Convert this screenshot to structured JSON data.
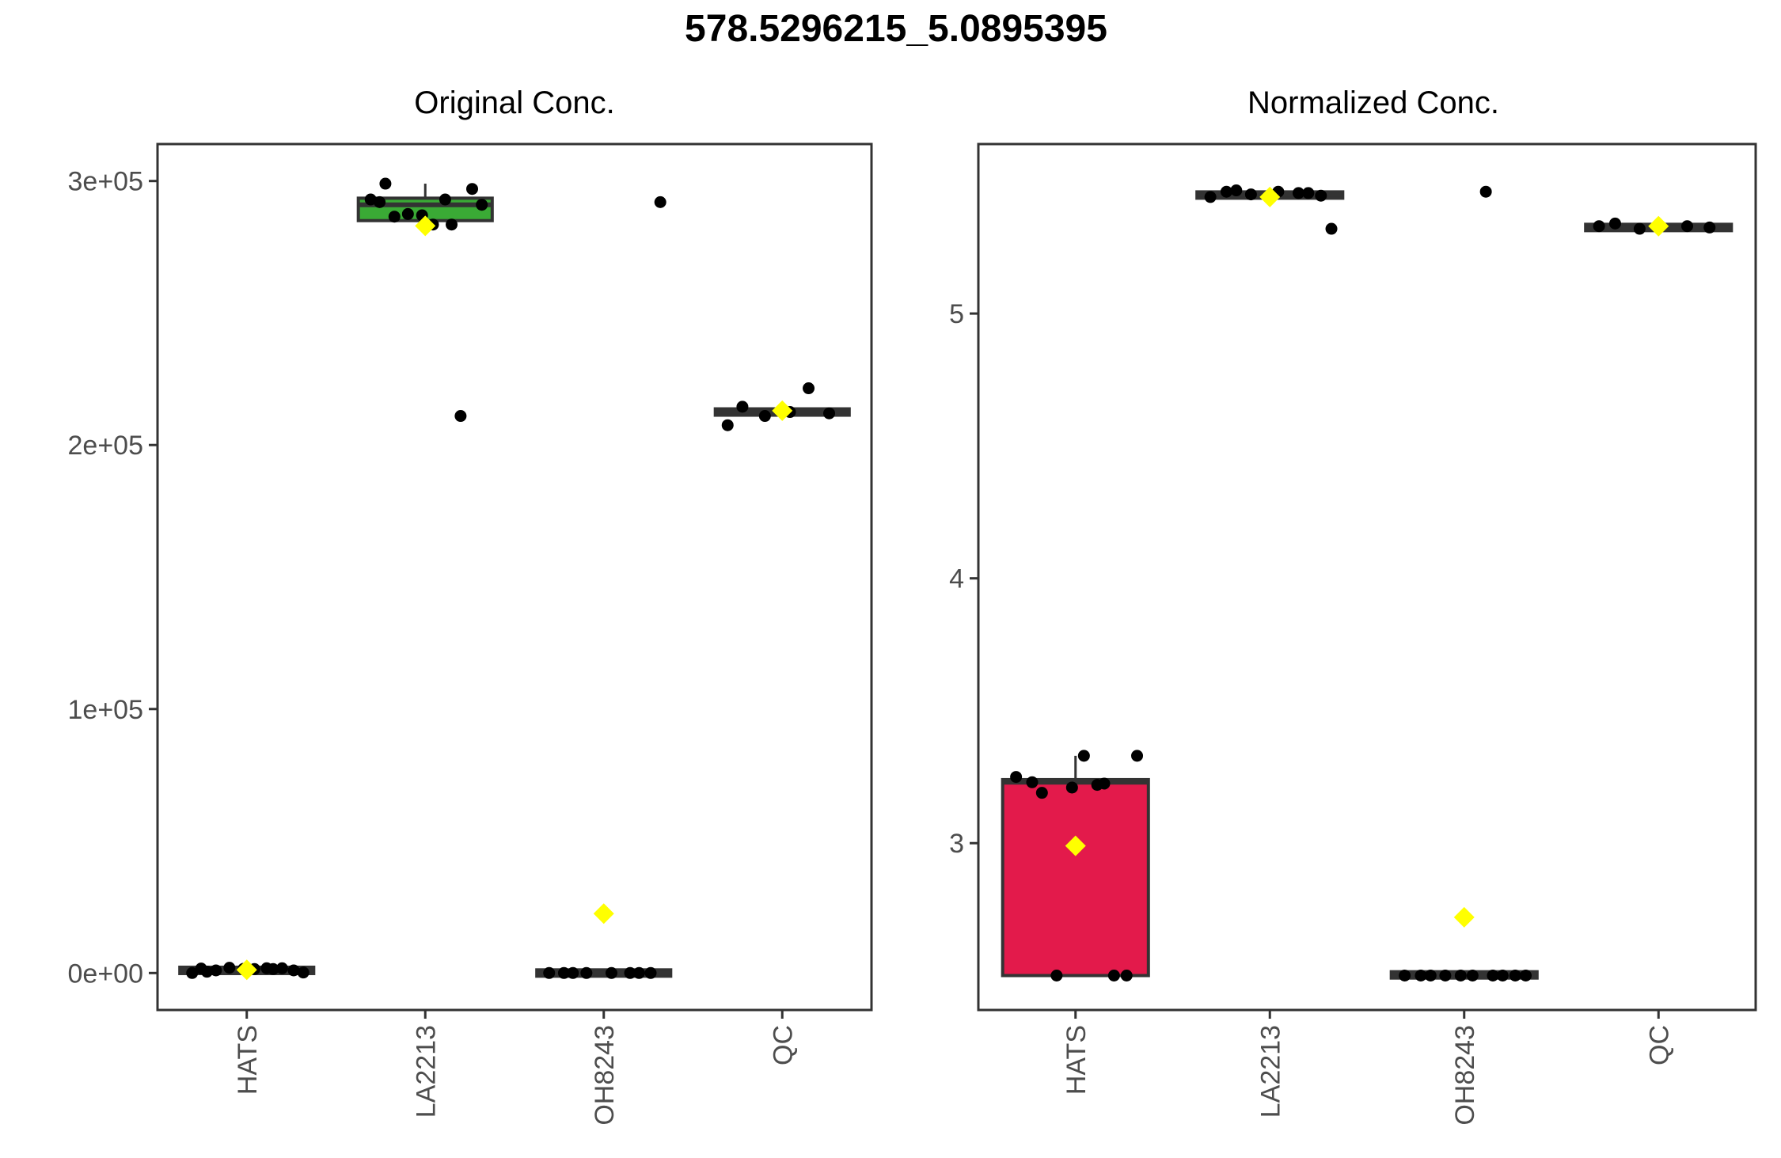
{
  "title": "578.5296215_5.0895395",
  "chart_data": [
    {
      "type": "box",
      "title": "Original Conc.",
      "xlabel": "",
      "ylabel": "",
      "categories": [
        "HATS",
        "LA2213",
        "OH8243",
        "QC"
      ],
      "ylim": [
        -14000,
        314000
      ],
      "yticks": [
        0,
        100000,
        200000,
        300000
      ],
      "ytick_labels": [
        "0e+00",
        "1e+05",
        "2e+05",
        "3e+05"
      ],
      "boxes": [
        {
          "category": "HATS",
          "q1": 0,
          "median": 1000,
          "q3": 2000,
          "whisker_low": 0,
          "whisker_high": 2500,
          "mean": 1200,
          "fill": "#333333"
        },
        {
          "category": "LA2213",
          "q1": 285000,
          "median": 291000,
          "q3": 293500,
          "whisker_low": 285000,
          "whisker_high": 299000,
          "mean": 283000,
          "fill": "#3aaa35"
        },
        {
          "category": "OH8243",
          "q1": 0,
          "median": 0,
          "q3": 0,
          "whisker_low": 0,
          "whisker_high": 0,
          "mean": 22500,
          "fill": "#333333"
        },
        {
          "category": "QC",
          "q1": 211500,
          "median": 212500,
          "q3": 213500,
          "whisker_low": 211500,
          "whisker_high": 213500,
          "mean": 213000,
          "fill": "#333333"
        }
      ],
      "points": [
        {
          "category": "HATS",
          "values": [
            500,
            1500,
            2000,
            1000,
            0,
            1500,
            1800,
            1000,
            200,
            1600,
            1800,
            1700
          ]
        },
        {
          "category": "LA2213",
          "values": [
            299000,
            283500,
            287500,
            297000,
            293000,
            283500,
            211000,
            286500,
            291000,
            287000,
            293000,
            292000
          ]
        },
        {
          "category": "OH8243",
          "values": [
            0,
            0,
            0,
            0,
            0,
            0,
            0,
            0,
            292000
          ]
        },
        {
          "category": "QC",
          "values": [
            214500,
            221500,
            211000,
            212000,
            207500,
            212500
          ]
        }
      ],
      "legend": "none",
      "grid": false
    },
    {
      "type": "box",
      "title": "Normalized Conc.",
      "xlabel": "",
      "ylabel": "",
      "categories": [
        "HATS",
        "LA2213",
        "OH8243",
        "QC"
      ],
      "ylim": [
        2.37,
        5.64
      ],
      "yticks": [
        3,
        4,
        5
      ],
      "ytick_labels": [
        "3",
        "4",
        "5"
      ],
      "boxes": [
        {
          "category": "HATS",
          "q1": 2.5,
          "median": 3.23,
          "q3": 3.24,
          "whisker_low": 2.5,
          "whisker_high": 3.33,
          "mean": 2.99,
          "fill": "#e31a4b"
        },
        {
          "category": "LA2213",
          "q1": 5.44,
          "median": 5.45,
          "q3": 5.455,
          "whisker_low": 5.44,
          "whisker_high": 5.46,
          "mean": 5.44,
          "fill": "#333333"
        },
        {
          "category": "OH8243",
          "q1": 2.5,
          "median": 2.5,
          "q3": 2.505,
          "whisker_low": 2.5,
          "whisker_high": 2.505,
          "mean": 2.72,
          "fill": "#333333"
        },
        {
          "category": "QC",
          "q1": 5.32,
          "median": 5.325,
          "q3": 5.33,
          "whisker_low": 5.32,
          "whisker_high": 5.33,
          "mean": 5.33,
          "fill": "#333333"
        }
      ],
      "points": [
        {
          "category": "HATS",
          "values": [
            3.23,
            3.225,
            2.5,
            2.5,
            3.25,
            3.33,
            2.5,
            3.19,
            3.33,
            3.21,
            3.22
          ]
        },
        {
          "category": "LA2213",
          "values": [
            5.46,
            5.455,
            5.45,
            5.445,
            5.44,
            5.46,
            5.455,
            5.465,
            5.32
          ]
        },
        {
          "category": "OH8243",
          "values": [
            2.5,
            2.5,
            2.5,
            2.5,
            2.5,
            2.5,
            2.5,
            2.5,
            2.5,
            2.5,
            5.46
          ]
        },
        {
          "category": "QC",
          "values": [
            5.34,
            5.33,
            5.32,
            5.325,
            5.33
          ]
        }
      ],
      "legend": "none",
      "grid": false
    }
  ],
  "colors": {
    "frame": "#333333",
    "point": "#000000",
    "mean_marker": "#ffff00",
    "tick_label": "#4d4d4d"
  }
}
